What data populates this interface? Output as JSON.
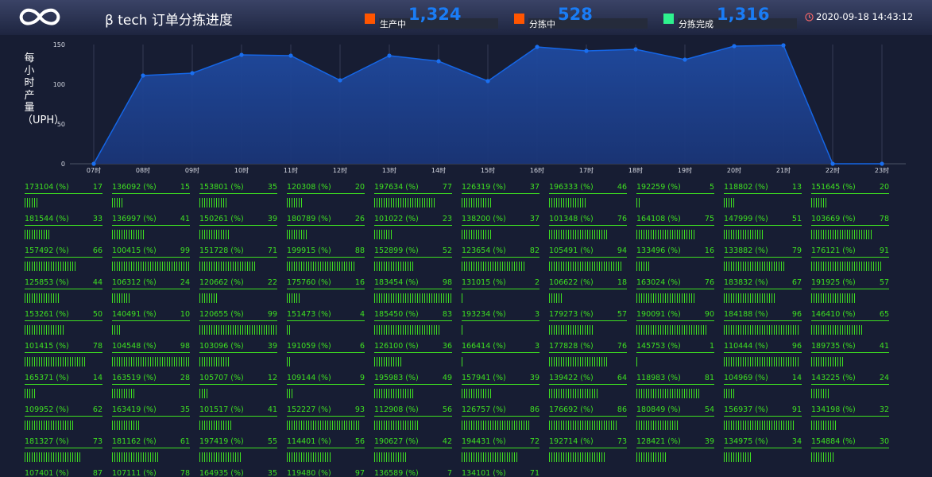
{
  "header": {
    "title": "β tech 订单分拣进度",
    "stats": [
      {
        "label": "生产中",
        "value": "1,324",
        "color": "#ff5500"
      },
      {
        "label": "分拣中",
        "value": "528",
        "color": "#ff5500"
      },
      {
        "label": "分拣完成",
        "value": "1,316",
        "color": "#2ef28e"
      }
    ],
    "datetime": "2020-09-18 14:43:12"
  },
  "chart_data": {
    "type": "area",
    "ylabel": "每小时产量（UPH）",
    "categories": [
      "07时",
      "08时",
      "09时",
      "10时",
      "11时",
      "12时",
      "13时",
      "14时",
      "15时",
      "16时",
      "17时",
      "18时",
      "19时",
      "20时",
      "21时",
      "22时",
      "23时"
    ],
    "series": [
      {
        "values": [
          0,
          111,
          114,
          137,
          136,
          105,
          136,
          129,
          104,
          147,
          142,
          144,
          131,
          148,
          149,
          0,
          0
        ]
      }
    ],
    "yticks": [
      0,
      50,
      100,
      150
    ],
    "ylim": [
      0,
      150
    ],
    "grid": true,
    "colors": {
      "line": "#1566e6",
      "fill": "#1d3f88",
      "point": "#1a6ff0"
    }
  },
  "items": [
    {
      "id": "173104 (%)",
      "value": 17
    },
    {
      "id": "136092 (%)",
      "value": 15
    },
    {
      "id": "153801 (%)",
      "value": 35
    },
    {
      "id": "120308 (%)",
      "value": 20
    },
    {
      "id": "197634 (%)",
      "value": 77
    },
    {
      "id": "126319 (%)",
      "value": 37
    },
    {
      "id": "196333 (%)",
      "value": 46
    },
    {
      "id": "192259 (%)",
      "value": 5
    },
    {
      "id": "118802 (%)",
      "value": 13
    },
    {
      "id": "151645 (%)",
      "value": 20
    },
    {
      "id": "181544 (%)",
      "value": 33
    },
    {
      "id": "136997 (%)",
      "value": 41
    },
    {
      "id": "150261 (%)",
      "value": 39
    },
    {
      "id": "180789 (%)",
      "value": 26
    },
    {
      "id": "101022 (%)",
      "value": 23
    },
    {
      "id": "138200 (%)",
      "value": 37
    },
    {
      "id": "101348 (%)",
      "value": 76
    },
    {
      "id": "164108 (%)",
      "value": 75
    },
    {
      "id": "147999 (%)",
      "value": 51
    },
    {
      "id": "103669 (%)",
      "value": 78
    },
    {
      "id": "157492 (%)",
      "value": 66
    },
    {
      "id": "100415 (%)",
      "value": 99
    },
    {
      "id": "151728 (%)",
      "value": 71
    },
    {
      "id": "199915 (%)",
      "value": 88
    },
    {
      "id": "152899 (%)",
      "value": 52
    },
    {
      "id": "123654 (%)",
      "value": 82
    },
    {
      "id": "105491 (%)",
      "value": 94
    },
    {
      "id": "133496 (%)",
      "value": 16
    },
    {
      "id": "133882 (%)",
      "value": 79
    },
    {
      "id": "176121 (%)",
      "value": 91
    },
    {
      "id": "125853 (%)",
      "value": 44
    },
    {
      "id": "106312 (%)",
      "value": 24
    },
    {
      "id": "120662 (%)",
      "value": 22
    },
    {
      "id": "175760 (%)",
      "value": 16
    },
    {
      "id": "183454 (%)",
      "value": 98
    },
    {
      "id": "131015 (%)",
      "value": 2
    },
    {
      "id": "106622 (%)",
      "value": 18
    },
    {
      "id": "163024 (%)",
      "value": 76
    },
    {
      "id": "183832 (%)",
      "value": 67
    },
    {
      "id": "191925 (%)",
      "value": 57
    },
    {
      "id": "153261 (%)",
      "value": 50
    },
    {
      "id": "140491 (%)",
      "value": 10
    },
    {
      "id": "120655 (%)",
      "value": 99
    },
    {
      "id": "151473 (%)",
      "value": 4
    },
    {
      "id": "185450 (%)",
      "value": 83
    },
    {
      "id": "193234 (%)",
      "value": 3
    },
    {
      "id": "179273 (%)",
      "value": 57
    },
    {
      "id": "190091 (%)",
      "value": 90
    },
    {
      "id": "184188 (%)",
      "value": 96
    },
    {
      "id": "146410 (%)",
      "value": 65
    },
    {
      "id": "101415 (%)",
      "value": 78
    },
    {
      "id": "104548 (%)",
      "value": 98
    },
    {
      "id": "103096 (%)",
      "value": 39
    },
    {
      "id": "191059 (%)",
      "value": 6
    },
    {
      "id": "126100 (%)",
      "value": 36
    },
    {
      "id": "166414 (%)",
      "value": 3
    },
    {
      "id": "177828 (%)",
      "value": 76
    },
    {
      "id": "145753 (%)",
      "value": 1
    },
    {
      "id": "110444 (%)",
      "value": 96
    },
    {
      "id": "189735 (%)",
      "value": 41
    },
    {
      "id": "165371 (%)",
      "value": 14
    },
    {
      "id": "163519 (%)",
      "value": 28
    },
    {
      "id": "105707 (%)",
      "value": 12
    },
    {
      "id": "109144 (%)",
      "value": 9
    },
    {
      "id": "195983 (%)",
      "value": 49
    },
    {
      "id": "157941 (%)",
      "value": 39
    },
    {
      "id": "139422 (%)",
      "value": 64
    },
    {
      "id": "118983 (%)",
      "value": 81
    },
    {
      "id": "104969 (%)",
      "value": 14
    },
    {
      "id": "143225 (%)",
      "value": 24
    },
    {
      "id": "109952 (%)",
      "value": 62
    },
    {
      "id": "163419 (%)",
      "value": 35
    },
    {
      "id": "101517 (%)",
      "value": 41
    },
    {
      "id": "152227 (%)",
      "value": 93
    },
    {
      "id": "112908 (%)",
      "value": 56
    },
    {
      "id": "126757 (%)",
      "value": 86
    },
    {
      "id": "176692 (%)",
      "value": 86
    },
    {
      "id": "180849 (%)",
      "value": 54
    },
    {
      "id": "156937 (%)",
      "value": 91
    },
    {
      "id": "134198 (%)",
      "value": 32
    },
    {
      "id": "181327 (%)",
      "value": 73
    },
    {
      "id": "181162 (%)",
      "value": 61
    },
    {
      "id": "197419 (%)",
      "value": 55
    },
    {
      "id": "114401 (%)",
      "value": 56
    },
    {
      "id": "190627 (%)",
      "value": 42
    },
    {
      "id": "194431 (%)",
      "value": 72
    },
    {
      "id": "192714 (%)",
      "value": 73
    },
    {
      "id": "128421 (%)",
      "value": 39
    },
    {
      "id": "134975 (%)",
      "value": 34
    },
    {
      "id": "154884 (%)",
      "value": 30
    },
    {
      "id": "107401 (%)",
      "value": 87
    },
    {
      "id": "107111 (%)",
      "value": 78
    },
    {
      "id": "164935 (%)",
      "value": 35
    },
    {
      "id": "119480 (%)",
      "value": 97
    },
    {
      "id": "136589 (%)",
      "value": 7
    },
    {
      "id": "134101 (%)",
      "value": 71
    }
  ]
}
